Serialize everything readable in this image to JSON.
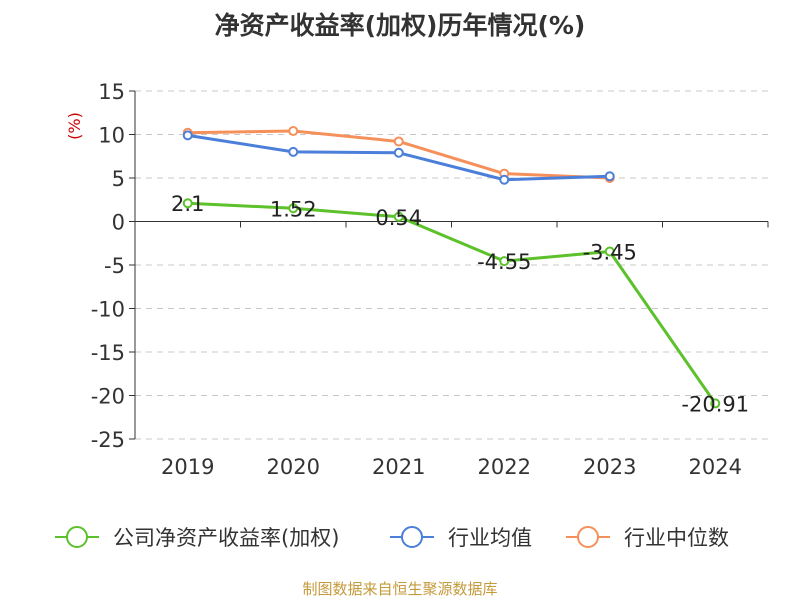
{
  "title": "净资产收益率(加权)历年情况(%)",
  "footer": "制图数据来自恒生聚源数据库",
  "chart_data": {
    "type": "line",
    "title": "净资产收益率(加权)历年情况(%)",
    "ylabel": "(%)",
    "xlabel": "",
    "categories": [
      "2019",
      "2020",
      "2021",
      "2022",
      "2023",
      "2024"
    ],
    "ylim": [
      -25,
      15
    ],
    "yticks": [
      15,
      10,
      5,
      0,
      -5,
      -10,
      -15,
      -20,
      -25
    ],
    "grid": true,
    "legend_position": "bottom",
    "series": [
      {
        "name": "公司净资产收益率(加权)",
        "color": "#5cc12a",
        "values": [
          2.1,
          1.52,
          0.54,
          -4.55,
          -3.45,
          -20.91
        ],
        "labels": [
          "2.1",
          "1.52",
          "0.54",
          "-4.55",
          "-3.45",
          "-20.91"
        ]
      },
      {
        "name": "行业均值",
        "color": "#4b7fd9",
        "values": [
          9.9,
          8.0,
          7.9,
          4.8,
          5.2,
          null
        ]
      },
      {
        "name": "行业中位数",
        "color": "#f5905a",
        "values": [
          10.2,
          10.4,
          9.2,
          5.5,
          5.0,
          null
        ]
      }
    ]
  }
}
